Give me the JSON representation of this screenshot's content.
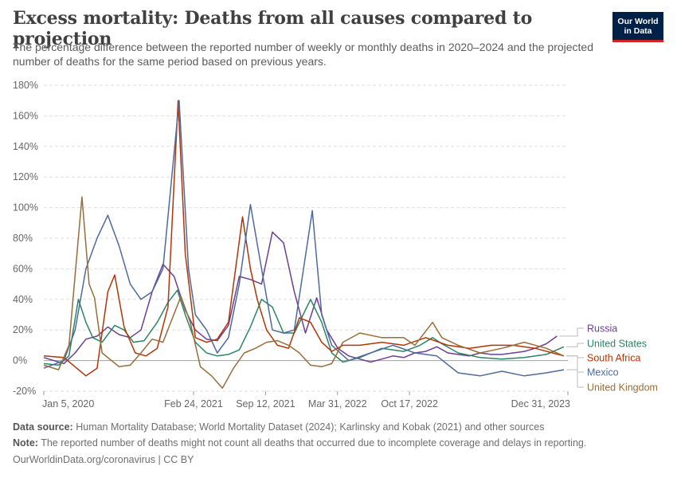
{
  "header": {
    "title": "Excess mortality: Deaths from all causes compared to projection",
    "subtitle": "The percentage difference between the reported number of weekly or monthly deaths in 2020–2024 and the projected number of deaths for the same period based on previous years."
  },
  "logo": {
    "line1": "Our World",
    "line2": "in Data",
    "bg_color": "#002147",
    "accent_color": "#ce261e"
  },
  "footer": {
    "source_label": "Data source:",
    "source_text": "Human Mortality Database; World Mortality Dataset (2024); Karlinsky and Kobak (2021) and other sources",
    "note_label": "Note:",
    "note_text": "The reported number of deaths might not count all deaths that occurred due to incomplete coverage and delays in reporting.",
    "credit": "OurWorldinData.org/coronavirus | CC BY"
  },
  "chart_data": {
    "type": "line",
    "ylim": [
      -20,
      180
    ],
    "y_ticks": [
      -20,
      0,
      20,
      40,
      60,
      80,
      100,
      120,
      140,
      160,
      180
    ],
    "y_tick_format": "percent",
    "x_range": [
      "2020-01-05",
      "2023-12-31"
    ],
    "x_ticks": [
      {
        "date": "2020-01-05",
        "label": "Jan 5, 2020"
      },
      {
        "date": "2021-02-24",
        "label": "Feb 24, 2021"
      },
      {
        "date": "2021-09-12",
        "label": "Sep 12, 2021"
      },
      {
        "date": "2022-03-31",
        "label": "Mar 31, 2022"
      },
      {
        "date": "2022-10-17",
        "label": "Oct 17, 2022"
      },
      {
        "date": "2023-12-31",
        "label": "Dec 31, 2023"
      }
    ],
    "grid": "horizontal dashed",
    "legend": "right, labels at line ends",
    "series": [
      {
        "name": "Russia",
        "color": "#6d3e91",
        "points": [
          [
            "2020-01-05",
            2
          ],
          [
            "2020-03-01",
            -2
          ],
          [
            "2020-04-01",
            5
          ],
          [
            "2020-05-01",
            14
          ],
          [
            "2020-06-01",
            16
          ],
          [
            "2020-07-01",
            22
          ],
          [
            "2020-08-01",
            17
          ],
          [
            "2020-09-01",
            15
          ],
          [
            "2020-10-01",
            20
          ],
          [
            "2020-11-01",
            45
          ],
          [
            "2020-12-01",
            63
          ],
          [
            "2021-01-01",
            55
          ],
          [
            "2021-02-01",
            33
          ],
          [
            "2021-03-01",
            20
          ],
          [
            "2021-04-01",
            14
          ],
          [
            "2021-05-01",
            13
          ],
          [
            "2021-06-01",
            23
          ],
          [
            "2021-07-01",
            55
          ],
          [
            "2021-08-01",
            53
          ],
          [
            "2021-09-01",
            50
          ],
          [
            "2021-10-01",
            84
          ],
          [
            "2021-11-01",
            77
          ],
          [
            "2021-12-01",
            45
          ],
          [
            "2022-01-01",
            18
          ],
          [
            "2022-02-01",
            41
          ],
          [
            "2022-03-01",
            20
          ],
          [
            "2022-04-01",
            8
          ],
          [
            "2022-05-01",
            3
          ],
          [
            "2022-06-01",
            1
          ],
          [
            "2022-07-01",
            -1
          ],
          [
            "2022-08-01",
            1
          ],
          [
            "2022-09-01",
            3
          ],
          [
            "2022-10-01",
            2
          ],
          [
            "2022-11-01",
            5
          ],
          [
            "2022-12-01",
            6
          ],
          [
            "2023-01-01",
            9
          ],
          [
            "2023-02-01",
            5
          ],
          [
            "2023-03-01",
            4
          ],
          [
            "2023-04-01",
            3
          ],
          [
            "2023-05-01",
            5
          ],
          [
            "2023-06-01",
            4
          ],
          [
            "2023-07-01",
            4
          ],
          [
            "2023-08-01",
            5
          ],
          [
            "2023-09-01",
            6
          ],
          [
            "2023-10-01",
            8
          ],
          [
            "2023-11-01",
            11
          ],
          [
            "2023-12-01",
            16
          ]
        ]
      },
      {
        "name": "United States",
        "color": "#2c8465",
        "points": [
          [
            "2020-01-05",
            -2
          ],
          [
            "2020-02-15",
            -3
          ],
          [
            "2020-03-15",
            3
          ],
          [
            "2020-04-10",
            40
          ],
          [
            "2020-05-01",
            25
          ],
          [
            "2020-05-20",
            15
          ],
          [
            "2020-06-15",
            12
          ],
          [
            "2020-07-20",
            23
          ],
          [
            "2020-08-15",
            20
          ],
          [
            "2020-09-10",
            12
          ],
          [
            "2020-10-10",
            13
          ],
          [
            "2020-11-15",
            25
          ],
          [
            "2020-12-15",
            38
          ],
          [
            "2021-01-10",
            46
          ],
          [
            "2021-02-01",
            30
          ],
          [
            "2021-03-01",
            12
          ],
          [
            "2021-04-01",
            5
          ],
          [
            "2021-05-01",
            3
          ],
          [
            "2021-06-01",
            4
          ],
          [
            "2021-07-01",
            7
          ],
          [
            "2021-08-01",
            22
          ],
          [
            "2021-09-01",
            40
          ],
          [
            "2021-10-01",
            35
          ],
          [
            "2021-11-01",
            18
          ],
          [
            "2021-12-01",
            18
          ],
          [
            "2022-01-15",
            40
          ],
          [
            "2022-02-15",
            25
          ],
          [
            "2022-03-15",
            5
          ],
          [
            "2022-04-15",
            -1
          ],
          [
            "2022-06-01",
            2
          ],
          [
            "2022-08-01",
            8
          ],
          [
            "2022-10-01",
            6
          ],
          [
            "2022-11-15",
            10
          ],
          [
            "2022-12-20",
            15
          ],
          [
            "2023-01-15",
            11
          ],
          [
            "2023-03-01",
            5
          ],
          [
            "2023-05-01",
            2
          ],
          [
            "2023-07-01",
            1
          ],
          [
            "2023-09-01",
            2
          ],
          [
            "2023-11-01",
            4
          ],
          [
            "2023-12-20",
            9
          ]
        ]
      },
      {
        "name": "South Africa",
        "color": "#b13507",
        "points": [
          [
            "2020-01-05",
            3
          ],
          [
            "2020-03-01",
            2
          ],
          [
            "2020-05-01",
            -10
          ],
          [
            "2020-06-01",
            -5
          ],
          [
            "2020-07-01",
            45
          ],
          [
            "2020-07-20",
            56
          ],
          [
            "2020-08-15",
            22
          ],
          [
            "2020-09-15",
            5
          ],
          [
            "2020-10-15",
            3
          ],
          [
            "2020-11-15",
            8
          ],
          [
            "2020-12-15",
            35
          ],
          [
            "2021-01-12",
            170
          ],
          [
            "2021-02-01",
            70
          ],
          [
            "2021-03-01",
            15
          ],
          [
            "2021-04-01",
            12
          ],
          [
            "2021-05-01",
            14
          ],
          [
            "2021-06-01",
            25
          ],
          [
            "2021-07-10",
            94
          ],
          [
            "2021-08-01",
            60
          ],
          [
            "2021-08-20",
            40
          ],
          [
            "2021-09-15",
            20
          ],
          [
            "2021-10-15",
            10
          ],
          [
            "2021-11-15",
            8
          ],
          [
            "2021-12-15",
            28
          ],
          [
            "2022-01-15",
            25
          ],
          [
            "2022-02-15",
            12
          ],
          [
            "2022-03-15",
            6
          ],
          [
            "2022-04-15",
            10
          ],
          [
            "2022-06-01",
            10
          ],
          [
            "2022-08-01",
            12
          ],
          [
            "2022-10-01",
            10
          ],
          [
            "2022-12-01",
            15
          ],
          [
            "2023-02-01",
            10
          ],
          [
            "2023-04-01",
            8
          ],
          [
            "2023-06-01",
            10
          ],
          [
            "2023-08-01",
            10
          ],
          [
            "2023-10-01",
            8
          ],
          [
            "2023-12-20",
            3
          ]
        ]
      },
      {
        "name": "Mexico",
        "color": "#4c6a9c",
        "points": [
          [
            "2020-01-05",
            -5
          ],
          [
            "2020-03-01",
            0
          ],
          [
            "2020-04-01",
            20
          ],
          [
            "2020-05-01",
            60
          ],
          [
            "2020-06-01",
            80
          ],
          [
            "2020-07-01",
            95
          ],
          [
            "2020-08-01",
            75
          ],
          [
            "2020-09-01",
            50
          ],
          [
            "2020-10-01",
            40
          ],
          [
            "2020-11-01",
            45
          ],
          [
            "2020-12-01",
            60
          ],
          [
            "2021-01-15",
            170
          ],
          [
            "2021-02-10",
            60
          ],
          [
            "2021-03-01",
            30
          ],
          [
            "2021-04-01",
            20
          ],
          [
            "2021-05-01",
            5
          ],
          [
            "2021-06-01",
            15
          ],
          [
            "2021-07-01",
            50
          ],
          [
            "2021-08-01",
            102
          ],
          [
            "2021-09-01",
            60
          ],
          [
            "2021-10-01",
            20
          ],
          [
            "2021-11-01",
            18
          ],
          [
            "2021-12-01",
            20
          ],
          [
            "2022-01-20",
            98
          ],
          [
            "2022-02-15",
            30
          ],
          [
            "2022-03-15",
            10
          ],
          [
            "2022-05-01",
            0
          ],
          [
            "2022-07-01",
            5
          ],
          [
            "2022-09-01",
            10
          ],
          [
            "2022-11-01",
            5
          ],
          [
            "2023-01-01",
            3
          ],
          [
            "2023-03-01",
            -8
          ],
          [
            "2023-05-01",
            -10
          ],
          [
            "2023-07-01",
            -7
          ],
          [
            "2023-09-01",
            -10
          ],
          [
            "2023-11-01",
            -8
          ],
          [
            "2023-12-20",
            -6
          ]
        ]
      },
      {
        "name": "United Kingdom",
        "color": "#986d39",
        "points": [
          [
            "2020-01-05",
            -3
          ],
          [
            "2020-02-15",
            -6
          ],
          [
            "2020-03-15",
            10
          ],
          [
            "2020-04-20",
            107
          ],
          [
            "2020-05-10",
            50
          ],
          [
            "2020-05-25",
            41
          ],
          [
            "2020-06-15",
            5
          ],
          [
            "2020-08-01",
            -4
          ],
          [
            "2020-09-01",
            -3
          ],
          [
            "2020-10-01",
            5
          ],
          [
            "2020-11-01",
            14
          ],
          [
            "2020-12-01",
            12
          ],
          [
            "2021-01-20",
            42
          ],
          [
            "2021-02-15",
            25
          ],
          [
            "2021-03-15",
            -4
          ],
          [
            "2021-04-15",
            -10
          ],
          [
            "2021-05-15",
            -18
          ],
          [
            "2021-06-15",
            -5
          ],
          [
            "2021-07-15",
            5
          ],
          [
            "2021-08-15",
            8
          ],
          [
            "2021-09-15",
            12
          ],
          [
            "2021-10-15",
            13
          ],
          [
            "2021-11-15",
            10
          ],
          [
            "2021-12-15",
            5
          ],
          [
            "2022-01-15",
            -3
          ],
          [
            "2022-02-15",
            -4
          ],
          [
            "2022-03-15",
            -2
          ],
          [
            "2022-04-15",
            12
          ],
          [
            "2022-06-01",
            18
          ],
          [
            "2022-08-01",
            15
          ],
          [
            "2022-10-01",
            15
          ],
          [
            "2022-11-01",
            10
          ],
          [
            "2022-12-20",
            25
          ],
          [
            "2023-01-15",
            15
          ],
          [
            "2023-03-01",
            10
          ],
          [
            "2023-05-01",
            5
          ],
          [
            "2023-07-01",
            8
          ],
          [
            "2023-09-01",
            12
          ],
          [
            "2023-11-01",
            8
          ],
          [
            "2023-12-20",
            3
          ]
        ]
      }
    ]
  }
}
